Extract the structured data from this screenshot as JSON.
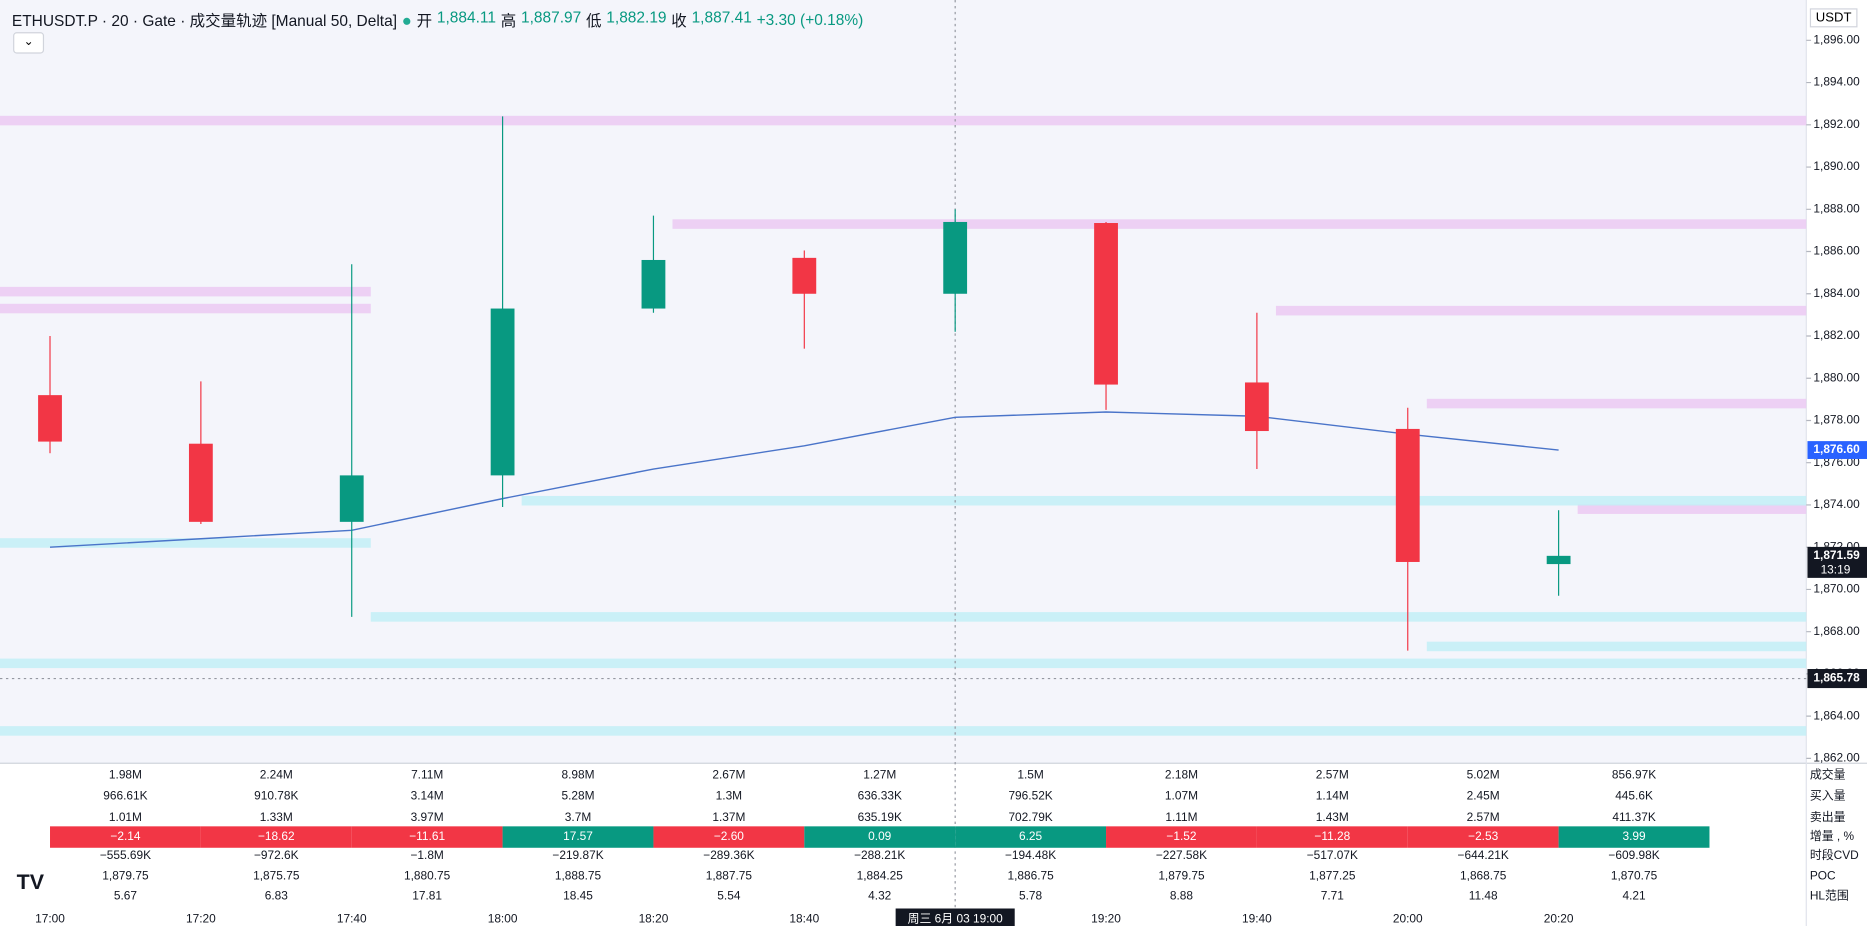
{
  "header": {
    "title": "ETHUSDT.P · 20 · Gate · 成交量轨迹 [Manual 50, Delta]",
    "ohlc": [
      {
        "label": "开",
        "value": "1,884.11"
      },
      {
        "label": "高",
        "value": "1,887.97"
      },
      {
        "label": "低",
        "value": "1,882.19"
      },
      {
        "label": "收",
        "value": "1,887.41"
      }
    ],
    "change": "+3.30 (+0.18%)",
    "currency": "USDT"
  },
  "chart_data": {
    "type": "candlestick",
    "categories": [
      "17:00",
      "17:20",
      "17:40",
      "18:00",
      "18:20",
      "18:40",
      "19:00",
      "19:20",
      "19:40",
      "20:00",
      "20:20"
    ],
    "open": [
      1879.2,
      1876.9,
      1873.2,
      1875.4,
      1883.3,
      1885.7,
      1884.0,
      1887.35,
      1879.8,
      1877.6,
      1871.2
    ],
    "high": [
      1882.0,
      1879.85,
      1885.4,
      1892.4,
      1887.7,
      1886.05,
      1888.0,
      1887.4,
      1883.1,
      1878.6,
      1873.75
    ],
    "low": [
      1876.45,
      1873.1,
      1868.7,
      1873.9,
      1883.1,
      1881.4,
      1882.2,
      1878.5,
      1875.7,
      1867.1,
      1869.7
    ],
    "close": [
      1877.0,
      1873.2,
      1875.4,
      1883.3,
      1885.6,
      1884.0,
      1887.4,
      1879.7,
      1877.5,
      1871.3,
      1871.59
    ],
    "up_color": "#089981",
    "down_color": "#f23645",
    "series": [
      {
        "color": "#4a74c9",
        "values": [
          1872.0,
          1872.4,
          1872.8,
          1874.3,
          1875.7,
          1876.8,
          1878.15,
          1878.4,
          1878.2,
          1877.35,
          1876.6
        ]
      }
    ],
    "ylim": [
      1861.77,
      1897.91
    ],
    "yticks": [
      {
        "value": 1862,
        "label": "1,862.00"
      },
      {
        "value": 1864,
        "label": "1,864.00"
      },
      {
        "value": 1866,
        "label": "1,866.00"
      },
      {
        "value": 1868,
        "label": "1,868.00"
      },
      {
        "value": 1870,
        "label": "1,870.00"
      },
      {
        "value": 1872,
        "label": "1,872.00"
      },
      {
        "value": 1874,
        "label": "1,874.00"
      },
      {
        "value": 1876,
        "label": "1,876.00"
      },
      {
        "value": 1878,
        "label": "1,878.00"
      },
      {
        "value": 1880,
        "label": "1,880.00"
      },
      {
        "value": 1882,
        "label": "1,882.00"
      },
      {
        "value": 1884,
        "label": "1,884.00"
      },
      {
        "value": 1886,
        "label": "1,886.00"
      },
      {
        "value": 1888,
        "label": "1,888.00"
      },
      {
        "value": 1890,
        "label": "1,890.00"
      },
      {
        "value": 1892,
        "label": "1,892.00"
      },
      {
        "value": 1894,
        "label": "1,894.00"
      },
      {
        "value": 1896,
        "label": "1,896.00"
      }
    ],
    "zones": [
      {
        "price": 1892.2,
        "color": "#ebc9f2",
        "from": null,
        "to": null
      },
      {
        "price": 1887.3,
        "color": "#ebc9f2",
        "from": 4,
        "to": null
      },
      {
        "price": 1884.1,
        "color": "#ebc9f2",
        "from": null,
        "to": 2
      },
      {
        "price": 1883.3,
        "color": "#ebc9f2",
        "from": null,
        "to": 2
      },
      {
        "price": 1883.2,
        "color": "#ebc9f2",
        "from": 8,
        "to": null
      },
      {
        "price": 1878.8,
        "color": "#ebc9f2",
        "from": 9,
        "to": null
      },
      {
        "price": 1873.8,
        "color": "#ebc9f2",
        "from": 10,
        "to": null
      },
      {
        "price": 1874.2,
        "color": "#c2eef6",
        "from": 3,
        "to": null
      },
      {
        "price": 1872.2,
        "color": "#c2eef6",
        "from": null,
        "to": 2
      },
      {
        "price": 1868.7,
        "color": "#c2eef6",
        "from": 2,
        "to": null
      },
      {
        "price": 1867.3,
        "color": "#c2eef6",
        "from": 9,
        "to": null
      },
      {
        "price": 1866.5,
        "color": "#c2eef6",
        "from": null,
        "to": null
      },
      {
        "price": 1863.3,
        "color": "#c2eef6",
        "from": null,
        "to": null
      }
    ],
    "price_labels": [
      {
        "value": 1876.6,
        "label": "1,876.60",
        "color": "#2962ff"
      },
      {
        "value": 1871.59,
        "label": "1,871.59",
        "sublabel": "13:19",
        "color": "#131722"
      }
    ],
    "crosshair": {
      "index": 6,
      "x_label": "周三 6月 03   19:00",
      "y_value": 1865.78,
      "y_label": "1,865.78"
    }
  },
  "table": {
    "row_labels": [
      "成交量",
      "买入量",
      "卖出量",
      "增量 , %",
      "时段CVD",
      "POC",
      "HL范围"
    ],
    "rows": [
      [
        "1.98M",
        "2.24M",
        "7.11M",
        "8.98M",
        "2.67M",
        "1.27M",
        "1.5M",
        "2.18M",
        "2.57M",
        "5.02M",
        "856.97K"
      ],
      [
        "966.61K",
        "910.78K",
        "3.14M",
        "5.28M",
        "1.3M",
        "636.33K",
        "796.52K",
        "1.07M",
        "1.14M",
        "2.45M",
        "445.6K"
      ],
      [
        "1.01M",
        "1.33M",
        "3.97M",
        "3.7M",
        "1.37M",
        "635.19K",
        "702.79K",
        "1.11M",
        "1.43M",
        "2.57M",
        "411.37K"
      ],
      [
        "−2.14",
        "−18.62",
        "−11.61",
        "17.57",
        "−2.60",
        "0.09",
        "6.25",
        "−1.52",
        "−11.28",
        "−2.53",
        "3.99"
      ],
      [
        "−555.69K",
        "−972.6K",
        "−1.8M",
        "−219.87K",
        "−289.36K",
        "−288.21K",
        "−194.48K",
        "−227.58K",
        "−517.07K",
        "−644.21K",
        "−609.98K"
      ],
      [
        "1,879.75",
        "1,875.75",
        "1,880.75",
        "1,888.75",
        "1,887.75",
        "1,884.25",
        "1,886.75",
        "1,879.75",
        "1,877.25",
        "1,868.75",
        "1,870.75"
      ],
      [
        "5.67",
        "6.83",
        "17.81",
        "18.45",
        "5.54",
        "4.32",
        "5.78",
        "8.88",
        "7.71",
        "11.48",
        "4.21"
      ]
    ]
  }
}
